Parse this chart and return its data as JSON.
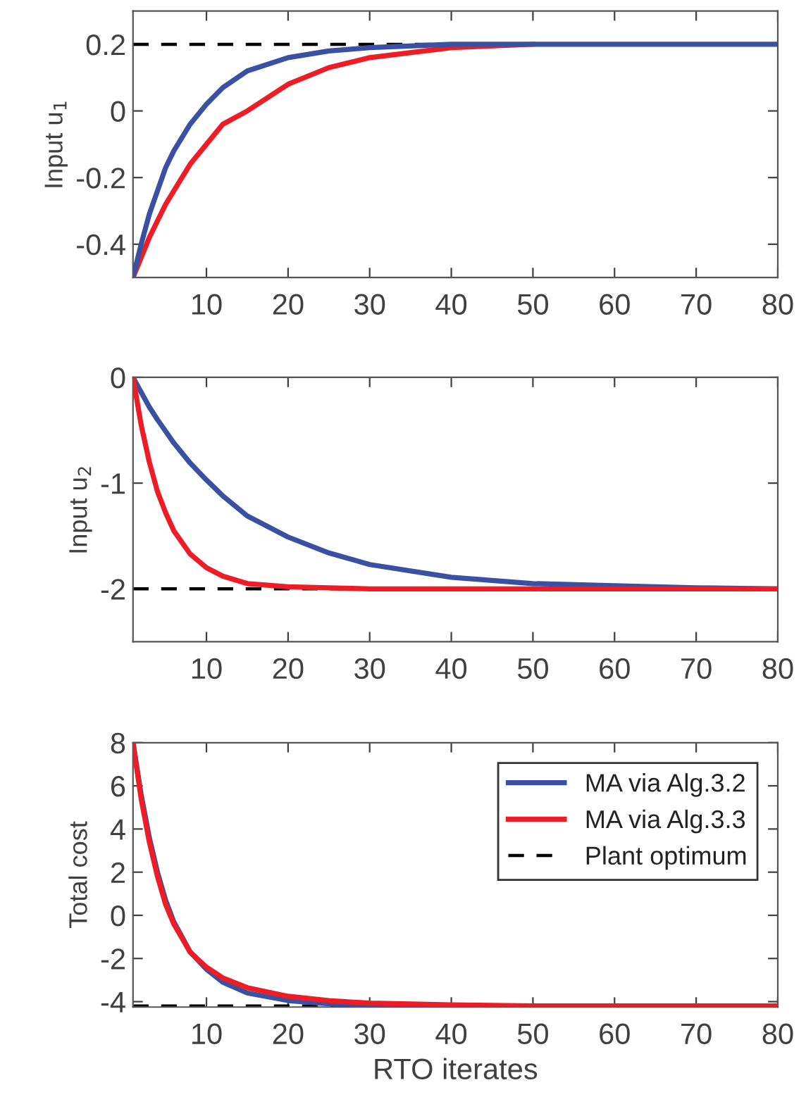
{
  "chart_data": [
    {
      "type": "line",
      "ylabel": "Input u$_{1}$",
      "x": [
        1,
        2,
        3,
        4,
        5,
        6,
        8,
        10,
        12,
        15,
        20,
        25,
        30,
        40,
        50,
        60,
        70,
        80
      ],
      "series": [
        {
          "color": "#ee1c25",
          "values": [
            -0.5,
            -0.44,
            -0.38,
            -0.33,
            -0.28,
            -0.24,
            -0.16,
            -0.1,
            -0.04,
            0.0,
            0.08,
            0.13,
            0.16,
            0.19,
            0.2,
            null,
            null,
            null
          ]
        },
        {
          "color": "#3a51a3",
          "values": [
            -0.5,
            -0.4,
            -0.31,
            -0.24,
            -0.17,
            -0.12,
            -0.04,
            0.02,
            0.07,
            0.12,
            0.16,
            0.18,
            0.19,
            0.2,
            0.2,
            0.2,
            0.2,
            0.2
          ]
        }
      ],
      "ref_lines": [
        {
          "axis": "y",
          "value": 0.2,
          "color": "#000000",
          "line_style": "dashed"
        }
      ],
      "xlim": [
        1,
        80
      ],
      "xticks": [
        10,
        20,
        30,
        40,
        50,
        60,
        70,
        80
      ],
      "ylim": [
        -0.5,
        0.3
      ],
      "yticks": [
        -0.4,
        -0.2,
        0,
        0.2
      ],
      "grid": false,
      "legend": false,
      "line_style": "solid",
      "marker": "none"
    },
    {
      "type": "line",
      "ylabel": "Input u$_{2}$",
      "x": [
        1,
        2,
        3,
        4,
        5,
        6,
        8,
        10,
        12,
        15,
        20,
        25,
        30,
        40,
        50,
        60,
        70,
        80
      ],
      "series": [
        {
          "color": "#3a51a3",
          "values": [
            0,
            -0.14,
            -0.28,
            -0.4,
            -0.51,
            -0.62,
            -0.81,
            -0.97,
            -1.12,
            -1.31,
            -1.51,
            -1.66,
            -1.77,
            -1.89,
            -1.95,
            -1.97,
            -1.99,
            -2.0
          ]
        },
        {
          "color": "#ee1c25",
          "values": [
            0,
            -0.45,
            -0.8,
            -1.08,
            -1.28,
            -1.45,
            -1.67,
            -1.8,
            -1.88,
            -1.95,
            -1.98,
            -1.99,
            -2.0,
            -2.0,
            -2.0,
            -2.0,
            -2.0,
            -2.0
          ]
        }
      ],
      "ref_lines": [
        {
          "axis": "y",
          "value": -2,
          "color": "#000000",
          "line_style": "dashed"
        }
      ],
      "xlim": [
        1,
        80
      ],
      "xticks": [
        10,
        20,
        30,
        40,
        50,
        60,
        70,
        80
      ],
      "ylim": [
        -2.5,
        0
      ],
      "yticks": [
        -2,
        -1,
        0
      ],
      "grid": false,
      "legend": false,
      "line_style": "solid",
      "marker": "none"
    },
    {
      "type": "line",
      "ylabel": "Total cost",
      "xlabel": "RTO iterates",
      "x": [
        1,
        2,
        3,
        4,
        5,
        6,
        8,
        10,
        12,
        15,
        20,
        25,
        30,
        40,
        50,
        60,
        70,
        80
      ],
      "series": [
        {
          "name": "MA via Alg.3.2",
          "color": "#3a51a3",
          "values": [
            8,
            5.6,
            3.6,
            2.0,
            0.7,
            -0.3,
            -1.7,
            -2.5,
            -3.1,
            -3.6,
            -3.95,
            -4.1,
            -4.15,
            -4.2,
            null,
            null,
            null,
            null
          ]
        },
        {
          "name": "MA via Alg.3.3",
          "color": "#ee1c25",
          "values": [
            8,
            5.4,
            3.4,
            1.8,
            0.5,
            -0.4,
            -1.7,
            -2.4,
            -2.9,
            -3.35,
            -3.75,
            -3.95,
            -4.07,
            -4.15,
            -4.2,
            -4.2,
            -4.2,
            -4.2
          ]
        }
      ],
      "ref_lines": [
        {
          "axis": "y",
          "value": -4.2,
          "label": "Plant optimum",
          "color": "#000000",
          "line_style": "dashed"
        }
      ],
      "xlim": [
        1,
        80
      ],
      "xticks": [
        10,
        20,
        30,
        40,
        50,
        60,
        70,
        80
      ],
      "ylim": [
        -4.25,
        8
      ],
      "yticks": [
        -4,
        -2,
        0,
        2,
        4,
        6,
        8
      ],
      "grid": false,
      "legend": "top right",
      "line_style": "solid",
      "marker": "none"
    }
  ]
}
